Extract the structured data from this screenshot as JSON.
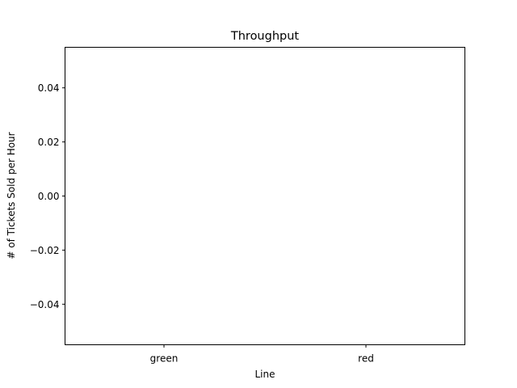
{
  "chart_data": {
    "type": "bar",
    "title": "Throughput",
    "xlabel": "Line",
    "ylabel": "# of Tickets Sold per Hour",
    "categories": [
      "green",
      "red"
    ],
    "values": [
      0,
      0
    ],
    "ylim": [
      -0.055,
      0.055
    ],
    "yticks": [
      -0.04,
      -0.02,
      0.0,
      0.02,
      0.04
    ],
    "ytick_labels": [
      "−0.04",
      "−0.02",
      "0.00",
      "0.02",
      "0.04"
    ],
    "grid": false,
    "legend": "none"
  }
}
